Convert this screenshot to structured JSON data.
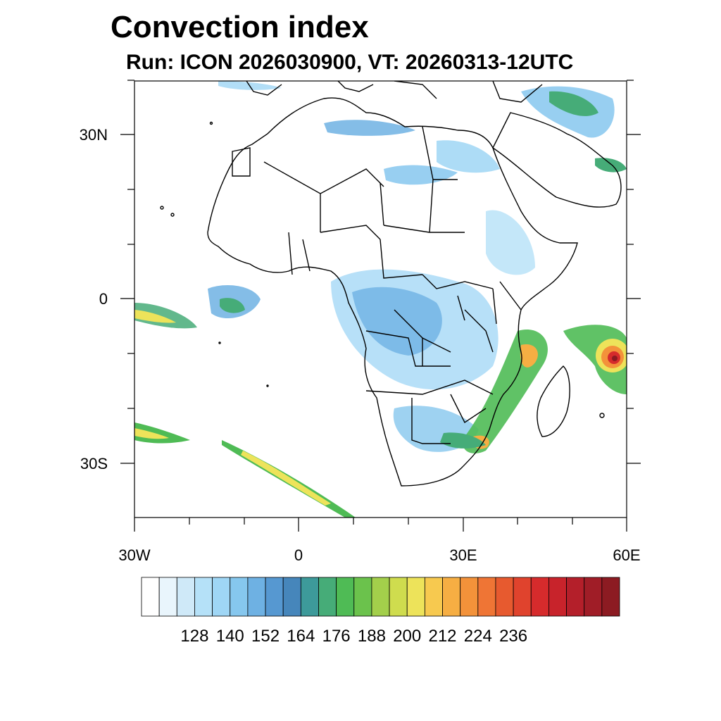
{
  "title": "Convection index",
  "subtitle": "Run: ICON 2026030900,  VT: 20260313-12UTC",
  "axes": {
    "y_labels": [
      "30N",
      "0",
      "30S"
    ],
    "x_labels": [
      "30W",
      "0",
      "30E",
      "60E"
    ]
  },
  "colorbar": {
    "colors": [
      "#ffffff",
      "#e9f5fc",
      "#cfe9f8",
      "#b5e1f8",
      "#9fd6f5",
      "#86c7ee",
      "#6eb1e3",
      "#5698d1",
      "#4686bb",
      "#3d9a9a",
      "#46ac78",
      "#4fbb55",
      "#6bc24c",
      "#a3cf4b",
      "#cfdc4e",
      "#ede35a",
      "#f7c94f",
      "#f6ae43",
      "#f3923a",
      "#ef7535",
      "#e75a2f",
      "#e0432d",
      "#d62b2c",
      "#c8232b",
      "#b41f2a",
      "#a01d27",
      "#8c1b22"
    ],
    "tick_labels": [
      "128",
      "140",
      "152",
      "164",
      "176",
      "188",
      "200",
      "212",
      "224",
      "236"
    ]
  }
}
